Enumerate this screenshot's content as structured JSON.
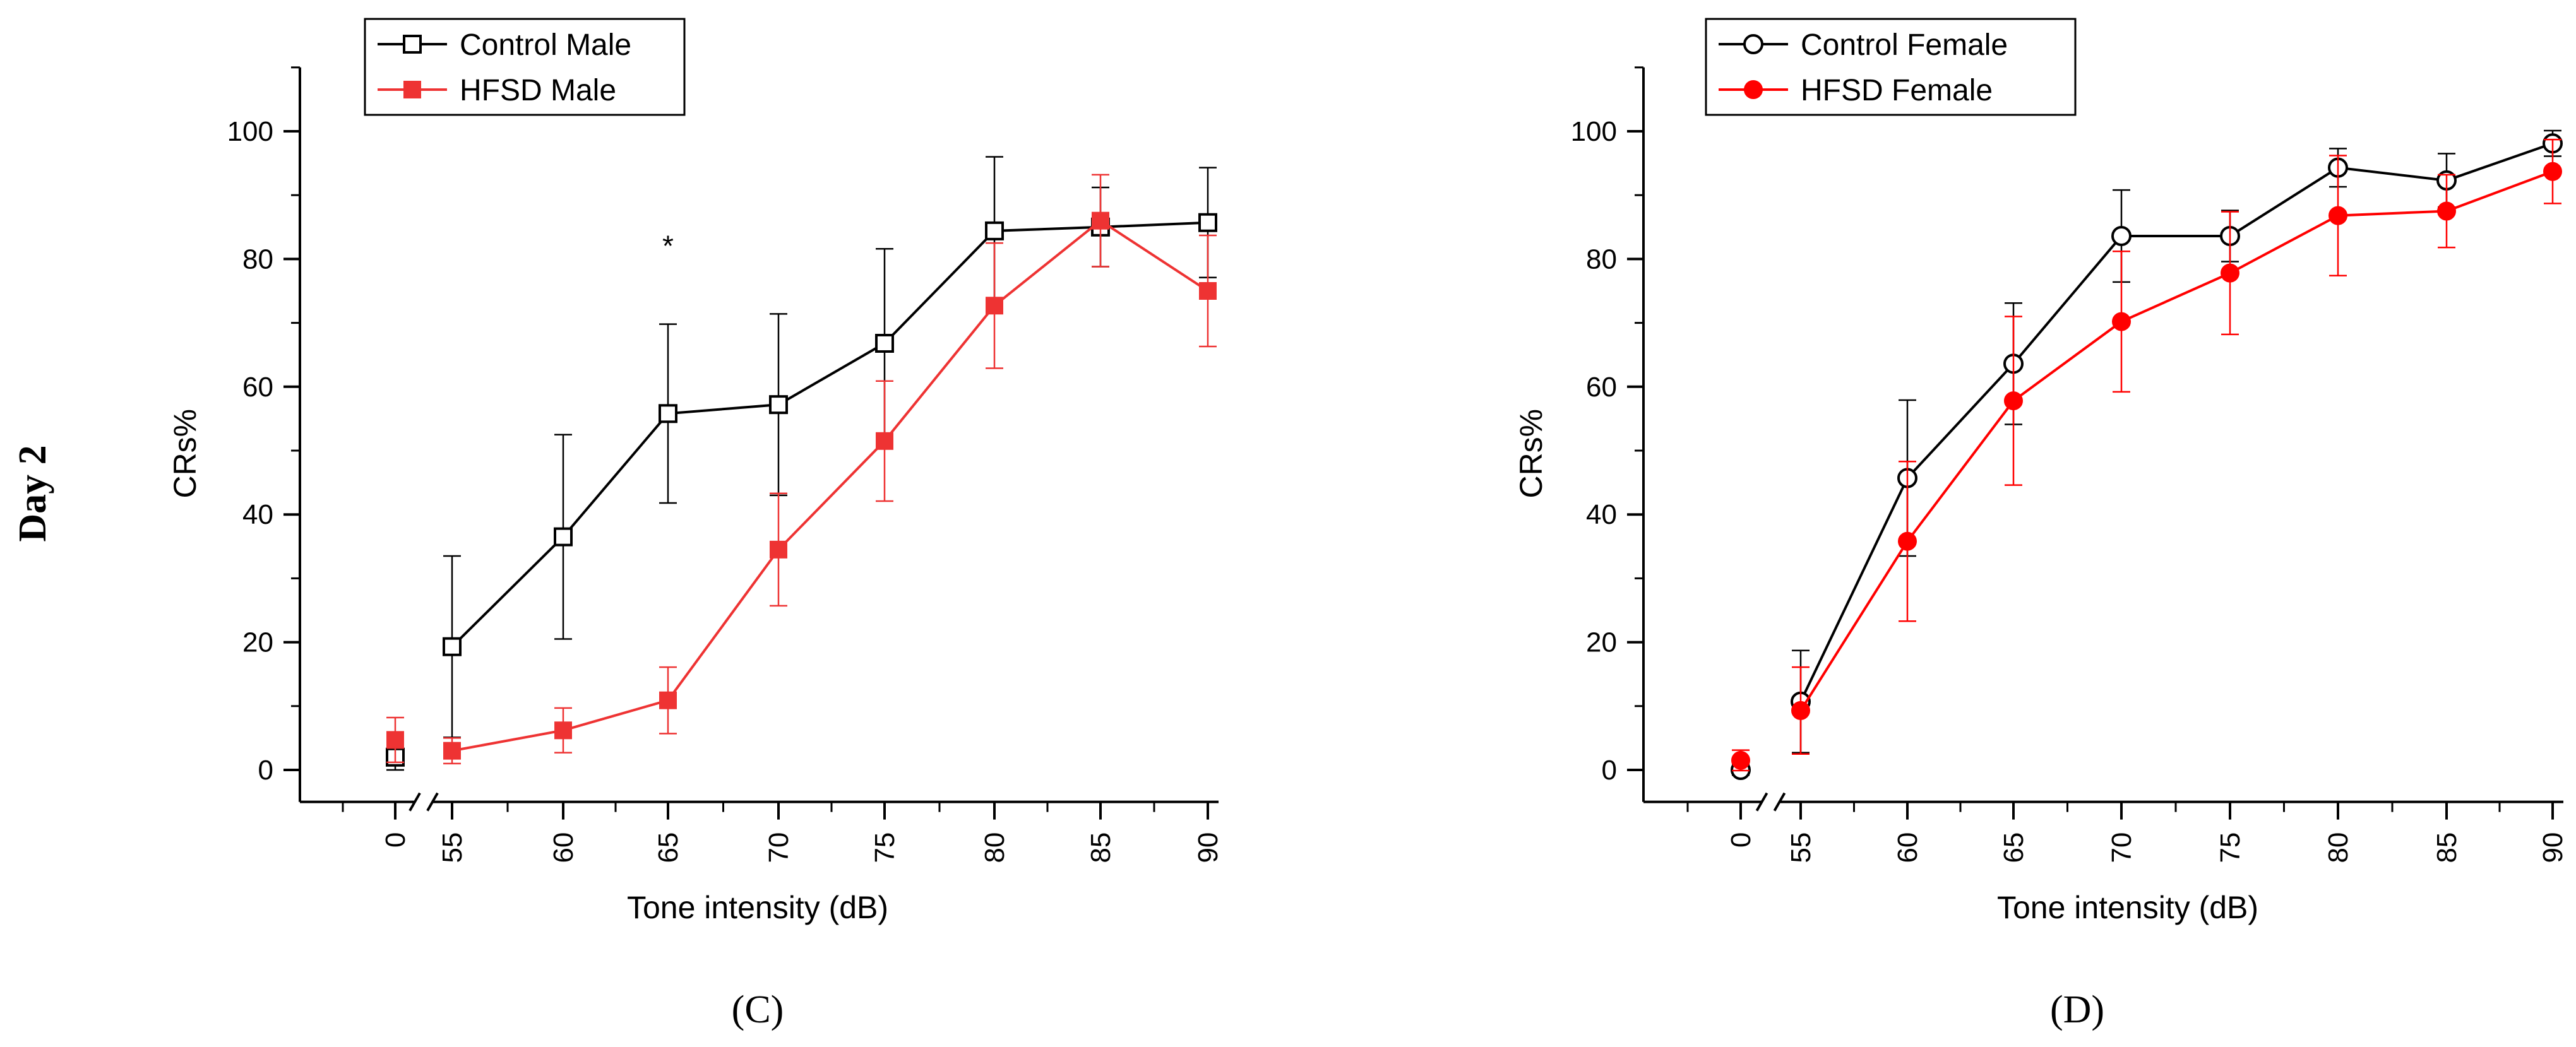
{
  "row_label": "Day 2",
  "chart_data": [
    {
      "type": "line",
      "panel_label": "(C)",
      "xlabel": "Tone intensity (dB)",
      "ylabel": "CRs%",
      "categories": [
        "0",
        "55",
        "60",
        "65",
        "70",
        "75",
        "80",
        "85",
        "90"
      ],
      "ylim": [
        -5,
        110
      ],
      "yticks": [
        0,
        20,
        40,
        60,
        80,
        100
      ],
      "axis_break": "between 0 and 55",
      "legend_position": "top-left",
      "grid": false,
      "series": [
        {
          "name": "Control Male",
          "marker": "open-square",
          "color": "#000000",
          "values": [
            2,
            19.3,
            36.5,
            55.8,
            57.2,
            66.8,
            84.4,
            85,
            85.7
          ],
          "errors": [
            2,
            14.2,
            16,
            14,
            14.2,
            14.8,
            11.6,
            6.2,
            8.6
          ]
        },
        {
          "name": "HFSD Male",
          "marker": "filled-square",
          "color": "#ee3333",
          "values": [
            4.7,
            3,
            6.2,
            10.9,
            34.5,
            51.5,
            72.7,
            86,
            75
          ],
          "errors": [
            3.5,
            2,
            3.5,
            5.2,
            8.8,
            9.4,
            9.8,
            7.2,
            8.7
          ]
        }
      ],
      "annotations": [
        {
          "text": "*",
          "x": "65"
        }
      ]
    },
    {
      "type": "line",
      "panel_label": "(D)",
      "xlabel": "Tone intensity (dB)",
      "ylabel": "CRs%",
      "categories": [
        "0",
        "55",
        "60",
        "65",
        "70",
        "75",
        "80",
        "85",
        "90"
      ],
      "ylim": [
        -5,
        110
      ],
      "yticks": [
        0,
        20,
        40,
        60,
        80,
        100
      ],
      "axis_break": "between 0 and 55",
      "legend_position": "top-left",
      "grid": false,
      "series": [
        {
          "name": "Control Female",
          "marker": "open-circle",
          "color": "#000000",
          "values": [
            0,
            10.7,
            45.7,
            63.6,
            83.6,
            83.6,
            94.3,
            92.3,
            98.1
          ],
          "errors": [
            0.8,
            8,
            12.2,
            9.5,
            7.2,
            4,
            3,
            4.2,
            2
          ]
        },
        {
          "name": "HFSD Female",
          "marker": "filled-circle",
          "color": "#ff0000",
          "values": [
            1.5,
            9.3,
            35.8,
            57.8,
            70.2,
            77.8,
            86.8,
            87.5,
            93.7
          ],
          "errors": [
            1.6,
            6.8,
            12.5,
            13.2,
            11,
            9.6,
            9.4,
            5.7,
            5
          ]
        }
      ]
    }
  ]
}
